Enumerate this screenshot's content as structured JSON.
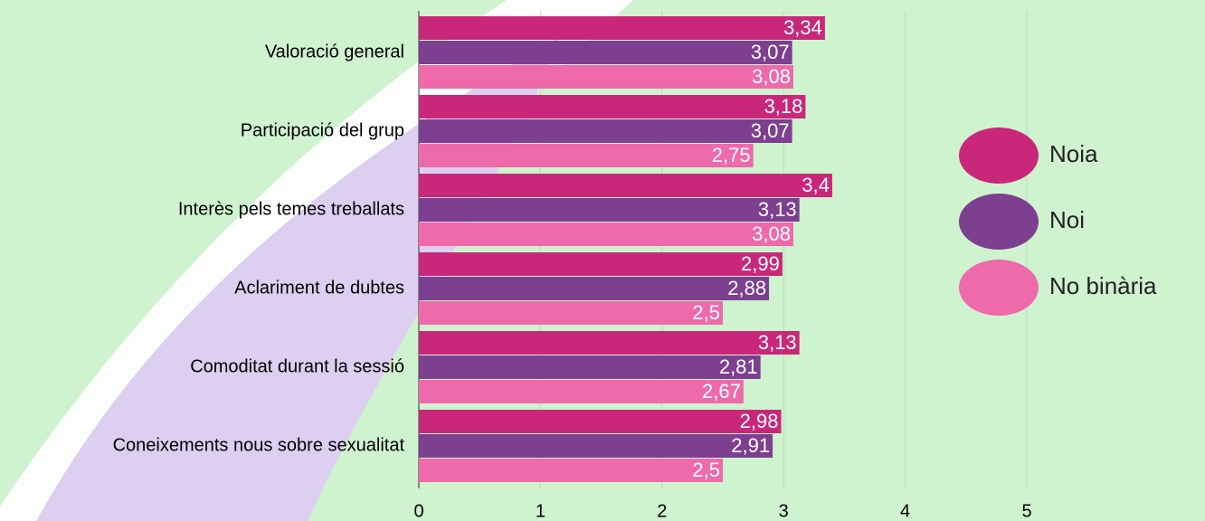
{
  "chart_data": {
    "type": "bar",
    "orientation": "horizontal",
    "categories": [
      "Valoració general",
      "Participació del grup",
      "Interès pels temes treballats",
      "Aclariment de dubtes",
      "Comoditat durant la sessió",
      "Coneixements nous sobre sexualitat"
    ],
    "series": [
      {
        "name": "Noia",
        "color": "#c9287a",
        "values": [
          3.34,
          3.18,
          3.4,
          2.99,
          3.13,
          2.98
        ],
        "value_labels": [
          "3,34",
          "3,18",
          "3,4",
          "2,99",
          "3,13",
          "2,98"
        ]
      },
      {
        "name": "Noi",
        "color": "#7d3f8f",
        "values": [
          3.07,
          3.07,
          3.13,
          2.88,
          2.81,
          2.91
        ],
        "value_labels": [
          "3,07",
          "3,07",
          "3,13",
          "2,88",
          "2,81",
          "2,91"
        ]
      },
      {
        "name": "No binària",
        "color": "#ee6aab",
        "values": [
          3.08,
          2.75,
          3.08,
          2.5,
          2.67,
          2.5
        ],
        "value_labels": [
          "3,08",
          "2,75",
          "3,08",
          "2,5",
          "2,67",
          "2,5"
        ]
      }
    ],
    "xlim": [
      0,
      5
    ],
    "xticks": [
      0,
      1,
      2,
      3,
      4,
      5
    ],
    "grid": true,
    "legend": "right"
  }
}
